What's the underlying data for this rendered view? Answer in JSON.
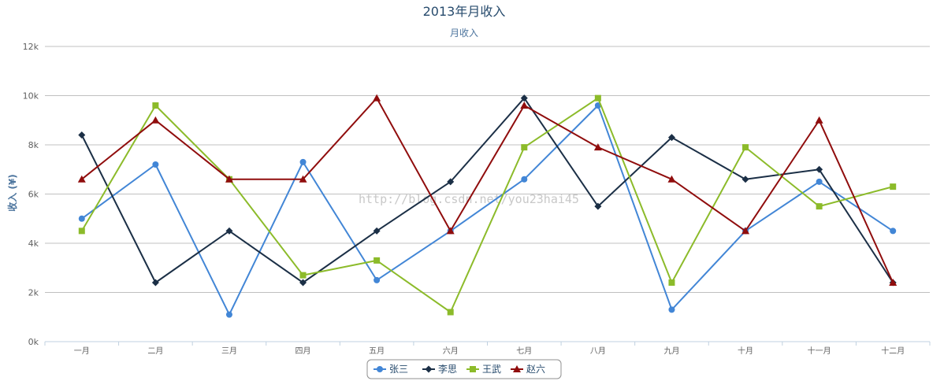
{
  "chart_data": {
    "type": "line",
    "title": "2013年月收入",
    "subtitle": "月收入",
    "ylabel": "收入 (¥)",
    "ylim": [
      0,
      12000
    ],
    "yticks": [
      0,
      2000,
      4000,
      6000,
      8000,
      10000,
      12000
    ],
    "ytick_labels": [
      "0k",
      "2k",
      "4k",
      "6k",
      "8k",
      "10k",
      "12k"
    ],
    "categories": [
      "一月",
      "二月",
      "三月",
      "四月",
      "五月",
      "六月",
      "七月",
      "八月",
      "九月",
      "十月",
      "十一月",
      "十二月"
    ],
    "grid": true,
    "legend": "bottom-center",
    "watermark": "http://blog.csdn.net/you23hai45",
    "series": [
      {
        "name": "张三",
        "color": "#4286d6",
        "marker": "circle",
        "values": [
          5000,
          7200,
          1100,
          7300,
          2500,
          4500,
          6600,
          9600,
          1300,
          4500,
          6500,
          4500
        ]
      },
      {
        "name": "李思",
        "color": "#1b2f46",
        "marker": "diamond",
        "values": [
          8400,
          2400,
          4500,
          2400,
          4500,
          6500,
          9900,
          5500,
          8300,
          6600,
          7000,
          2400
        ]
      },
      {
        "name": "王武",
        "color": "#8cbb2a",
        "marker": "square",
        "values": [
          4500,
          9600,
          6600,
          2700,
          3300,
          1200,
          7900,
          9900,
          2400,
          7900,
          5500,
          6300
        ]
      },
      {
        "name": "赵六",
        "color": "#900d0d",
        "marker": "triangle",
        "values": [
          6600,
          9000,
          6600,
          6600,
          9900,
          4500,
          9600,
          7900,
          6600,
          4500,
          9000,
          2400
        ]
      }
    ]
  }
}
